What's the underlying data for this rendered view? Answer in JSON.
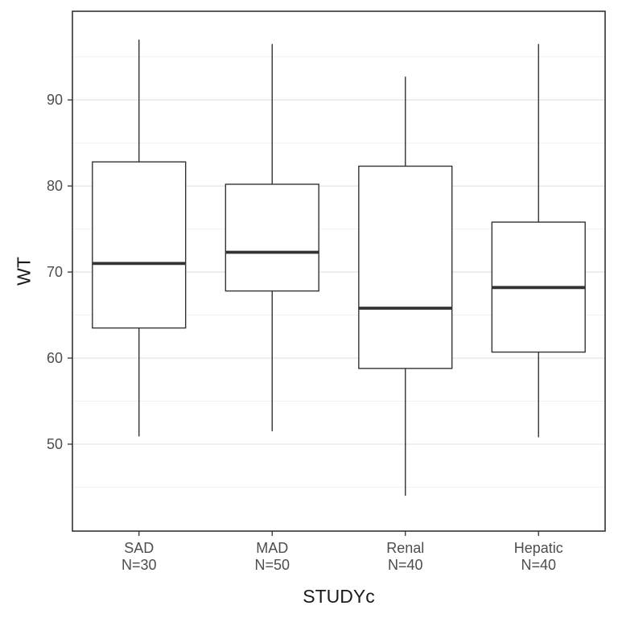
{
  "chart_data": {
    "type": "boxplot",
    "title": "",
    "xlabel": "STUDYc",
    "ylabel": "WT",
    "ylim": [
      39.9,
      100.3
    ],
    "yticks_major": [
      50,
      60,
      70,
      80,
      90
    ],
    "yticks_minor": [
      45,
      55,
      65,
      75,
      85,
      95
    ],
    "categories": [
      "SAD",
      "MAD",
      "Renal",
      "Hepatic"
    ],
    "series": [
      {
        "name": "SAD",
        "n_label": "N=30",
        "whisker_low": 50.9,
        "q1": 63.5,
        "median": 71.0,
        "q3": 82.8,
        "whisker_high": 97.0
      },
      {
        "name": "MAD",
        "n_label": "N=50",
        "whisker_low": 51.5,
        "q1": 67.8,
        "median": 72.3,
        "q3": 80.2,
        "whisker_high": 96.5
      },
      {
        "name": "Renal",
        "n_label": "N=40",
        "whisker_low": 44.0,
        "q1": 58.8,
        "median": 65.8,
        "q3": 82.3,
        "whisker_high": 92.7
      },
      {
        "name": "Hepatic",
        "n_label": "N=40",
        "whisker_low": 50.8,
        "q1": 60.7,
        "median": 68.2,
        "q3": 75.8,
        "whisker_high": 96.5
      }
    ],
    "colors": {
      "box_stroke": "#333333",
      "box_fill": "#ffffff",
      "grid_major": "#e4e4e4",
      "grid_minor": "#f2f2f2",
      "panel_border": "#333333",
      "tick_mark": "#333333",
      "tick_label": "#4d4d4d",
      "axis_title": "#1a1a1a",
      "panel_background": "#ffffff"
    },
    "legend": "none",
    "grid": "on"
  }
}
